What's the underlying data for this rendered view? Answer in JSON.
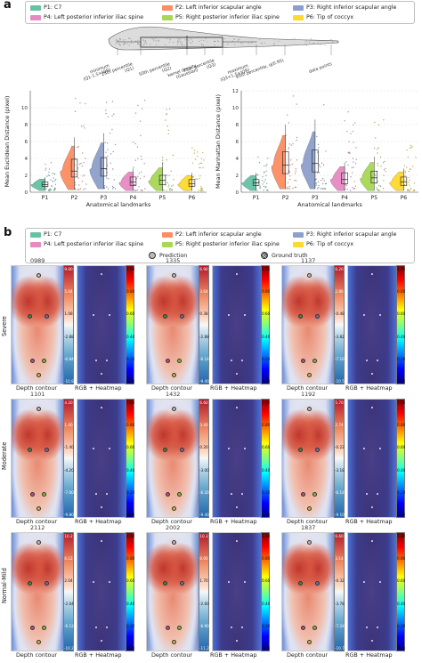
{
  "panel_a": {
    "label": "a",
    "legend": [
      {
        "key": "p1",
        "label": "P1: C7",
        "color": "#66c2a5"
      },
      {
        "key": "p2",
        "label": "P2: Left inferior scapular angle",
        "color": "#fc8d62"
      },
      {
        "key": "p3",
        "label": "P3: Right inferior scapular angle",
        "color": "#8da0cb"
      },
      {
        "key": "p4",
        "label": "P4: Left posterior inferior iliac spine",
        "color": "#e78ac3"
      },
      {
        "key": "p5",
        "label": "P5: Right posterior inferior iliac spine",
        "color": "#a6d854"
      },
      {
        "key": "p6",
        "label": "P6: Tip of coccyx",
        "color": "#ffd92f"
      }
    ],
    "schematic_labels": {
      "minimum": "minimum\n(Q1-1.5×IQR)",
      "q1": "25th percentile\n(Q1)",
      "median": "50th percentile\n(Q2)",
      "kde": "kernel density\n(Gaussian)",
      "q3": "75th percentile\n(Q3)",
      "maximum": "maximum\n(Q3+1.5×IQR)",
      "p95": "95th percentile, q(0.95)",
      "points": "data points"
    }
  },
  "chart_data": [
    {
      "type": "violin",
      "ylabel": "Mean Euclidean Distance (pixel)",
      "xlabel": "Anatomical landmarks",
      "categories": [
        "P1",
        "P2",
        "P3",
        "P4",
        "P5",
        "P6"
      ],
      "ylim": [
        0,
        12
      ],
      "yticks": [
        0,
        2,
        4,
        6,
        8,
        10
      ],
      "grid": true,
      "series": [
        {
          "q1": 0.7,
          "median": 0.9,
          "q3": 1.2,
          "whisker_low": 0.2,
          "whisker_high": 1.8,
          "max": 3.9
        },
        {
          "q1": 1.8,
          "median": 2.5,
          "q3": 3.9,
          "whisker_low": 0.3,
          "whisker_high": 6.5,
          "max": 11.3
        },
        {
          "q1": 1.9,
          "median": 2.8,
          "q3": 4.1,
          "whisker_low": 0.4,
          "whisker_high": 7.0,
          "max": 11.4
        },
        {
          "q1": 0.8,
          "median": 1.2,
          "q3": 1.8,
          "whisker_low": 0.2,
          "whisker_high": 2.8,
          "max": 11.0
        },
        {
          "q1": 0.9,
          "median": 1.4,
          "q3": 2.0,
          "whisker_low": 0.2,
          "whisker_high": 3.5,
          "max": 10.8
        },
        {
          "q1": 0.7,
          "median": 1.0,
          "q3": 1.5,
          "whisker_low": 0.2,
          "whisker_high": 2.3,
          "max": 5.5
        }
      ]
    },
    {
      "type": "violin",
      "ylabel": "Mean Manhattan Distance (pixel)",
      "xlabel": "Anatomical landmarks",
      "categories": [
        "P1",
        "P2",
        "P3",
        "P4",
        "P5",
        "P6"
      ],
      "ylim": [
        0,
        12
      ],
      "yticks": [
        0,
        2,
        4,
        6,
        8,
        10,
        12
      ],
      "grid": true,
      "series": [
        {
          "q1": 0.8,
          "median": 1.1,
          "q3": 1.5,
          "whisker_low": 0.2,
          "whisker_high": 2.3,
          "max": 4.6
        },
        {
          "q1": 2.2,
          "median": 3.2,
          "q3": 4.8,
          "whisker_low": 0.4,
          "whisker_high": 8.0,
          "max": 11.5
        },
        {
          "q1": 2.4,
          "median": 3.4,
          "q3": 5.0,
          "whisker_low": 0.4,
          "whisker_high": 8.6,
          "max": 11.8
        },
        {
          "q1": 1.0,
          "median": 1.5,
          "q3": 2.3,
          "whisker_low": 0.2,
          "whisker_high": 3.5,
          "max": 10.5
        },
        {
          "q1": 1.1,
          "median": 1.7,
          "q3": 2.5,
          "whisker_low": 0.2,
          "whisker_high": 4.2,
          "max": 9.3
        },
        {
          "q1": 0.8,
          "median": 1.2,
          "q3": 1.8,
          "whisker_low": 0.2,
          "whisker_high": 2.8,
          "max": 6.0
        }
      ]
    }
  ],
  "panel_b": {
    "label": "b",
    "prediction_label": "Prediction",
    "ground_truth_label": "Ground truth",
    "tile_labels": {
      "depth": "Depth contour",
      "rgb": "RGB + Heatmap"
    },
    "rows": [
      {
        "label": "Severe",
        "samples": [
          {
            "id": "0989",
            "cb": [
              "9.00",
              "5.04",
              "1.08",
              "-2.88",
              "-6.84",
              "-10.8"
            ]
          },
          {
            "id": "1335",
            "cb": [
              "6.90",
              "3.64",
              "0.38",
              "-2.88",
              "-6.14",
              "-9.40"
            ]
          },
          {
            "id": "1137",
            "cb": [
              "6.20",
              "2.86",
              "-0.48",
              "-3.82",
              "-7.16",
              "-10.5"
            ]
          }
        ]
      },
      {
        "label": "Moderate",
        "samples": [
          {
            "id": "1101",
            "cb": [
              "4.20",
              "1.40",
              "-1.40",
              "-4.20",
              "-7.00",
              "-9.80"
            ]
          },
          {
            "id": "1432",
            "cb": [
              "6.60",
              "3.40",
              "0.20",
              "-3.00",
              "-6.20",
              "-9.40"
            ]
          },
          {
            "id": "1192",
            "cb": [
              "5.70",
              "2.74",
              "-0.22",
              "-3.18",
              "-6.14",
              "-9.10"
            ]
          }
        ]
      },
      {
        "label": "Normal-Mild",
        "samples": [
          {
            "id": "2112",
            "cb": [
              "10.2",
              "6.12",
              "2.04",
              "-2.04",
              "-6.12",
              "-10.2"
            ]
          },
          {
            "id": "2002",
            "cb": [
              "10.3",
              "6.00",
              "1.70",
              "-2.60",
              "-6.90",
              "-11.2"
            ]
          },
          {
            "id": "1837",
            "cb": [
              "6.60",
              "3.14",
              "-0.32",
              "-3.78",
              "-7.24",
              "-10.7"
            ]
          }
        ]
      }
    ],
    "heat_ticks": [
      "1.00",
      "0.80",
      "0.60",
      "0.40",
      "0.20",
      "0.00"
    ]
  }
}
